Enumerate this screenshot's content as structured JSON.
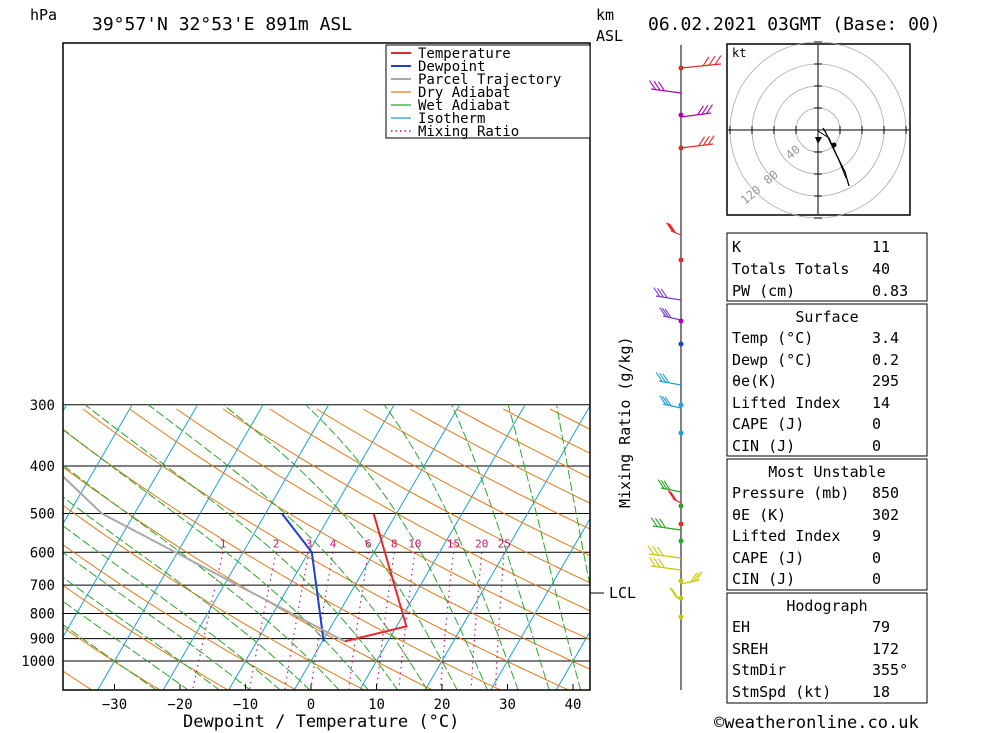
{
  "header": {
    "pressure_unit": "hPa",
    "location": "39°57'N 32°53'E 891m ASL",
    "km_label": "km",
    "asl_label": "ASL",
    "datetime": "06.02.2021 03GMT (Base: 00)"
  },
  "chart_data": {
    "type": "line",
    "title": "",
    "xlabel": "Dewpoint / Temperature (°C)",
    "ylabel": "Mixing Ratio (g/kg)",
    "pressure_ticks": [
      300,
      400,
      500,
      600,
      700,
      800,
      900,
      1000
    ],
    "temperature_ticks": [
      -30,
      -20,
      -10,
      0,
      10,
      20,
      30,
      40
    ],
    "legend": [
      "Temperature",
      "Dewpoint",
      "Parcel Trajectory",
      "Dry Adiabat",
      "Wet Adiabat",
      "Isotherm",
      "Mixing Ratio"
    ],
    "mixing_ratio_labels": [
      "1",
      "2",
      "3",
      "4",
      "6",
      "8",
      "10",
      "15",
      "20",
      "25"
    ],
    "mixing_ratio_values": [
      1,
      2,
      3,
      4,
      6,
      8,
      10,
      15,
      20,
      25
    ],
    "lcl_label": "LCL",
    "lcl_pressure": 880,
    "series": [
      {
        "name": "Temperature",
        "color": "#e8282c",
        "points": [
          [
            3.4,
            912
          ],
          [
            11.5,
            850
          ],
          [
            -3.5,
            500
          ]
        ]
      },
      {
        "name": "Dewpoint",
        "color": "#1e3fd0",
        "points": [
          [
            0.2,
            912
          ],
          [
            -9.5,
            600
          ],
          [
            -17.5,
            500
          ]
        ]
      },
      {
        "name": "Parcel Trajectory",
        "color": "#a9a9a9",
        "points": [
          [
            3.4,
            912
          ],
          [
            -45,
            500
          ],
          [
            -72,
            300
          ]
        ]
      }
    ]
  },
  "hodograph": {
    "unit_label": "kt",
    "ring_labels": [
      "40",
      "80",
      "120"
    ]
  },
  "stats": {
    "k_label": "K",
    "k_value": "11",
    "tt_label": "Totals Totals",
    "tt_value": "40",
    "pw_label": "PW (cm)",
    "pw_value": "0.83",
    "surface_header": "Surface",
    "s_temp_label": "Temp (°C)",
    "s_temp_value": "3.4",
    "s_dewp_label": "Dewp (°C)",
    "s_dewp_value": "0.2",
    "s_theta_label": "θe(K)",
    "s_theta_value": "295",
    "s_li_label": "Lifted Index",
    "s_li_value": "14",
    "s_cape_label": "CAPE (J)",
    "s_cape_value": "0",
    "s_cin_label": "CIN (J)",
    "s_cin_value": "0",
    "mu_header": "Most Unstable",
    "mu_pres_label": "Pressure (mb)",
    "mu_pres_value": "850",
    "mu_theta_label": "θE (K)",
    "mu_theta_value": "302",
    "mu_li_label": "Lifted Index",
    "mu_li_value": "9",
    "mu_cape_label": "CAPE (J)",
    "mu_cape_value": "0",
    "mu_cin_label": "CIN (J)",
    "mu_cin_value": "0",
    "hodo_header": "Hodograph",
    "eh_label": "EH",
    "eh_value": "79",
    "sreh_label": "SREH",
    "sreh_value": "172",
    "stmdir_label": "StmDir",
    "stmdir_value": "355°",
    "stmspd_label": "StmSpd (kt)",
    "stmspd_value": "18"
  },
  "footer": {
    "copyright": "©weatheronline.co.uk"
  }
}
